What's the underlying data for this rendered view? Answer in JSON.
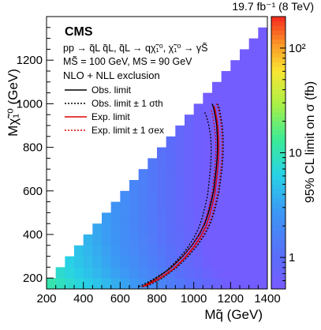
{
  "chart_data": {
    "type": "heatmap",
    "header": {
      "lumi_label": "19.7 fb⁻¹ (8 TeV)"
    },
    "experiment_label": "CMS",
    "process_label": "pp → q̃L q̃L, q̃L → qχ̃₁⁰, χ̃₁⁰ → γS̃",
    "mass_label": "MS̃ = 100 GeV, MS = 90 GeV",
    "xsec_label": "NLO + NLL exclusion",
    "xlabel": "Mq̃ (GeV)",
    "ylabel": "Mχ̃₁⁰ (GeV)",
    "zlabel": "95% CL limit on σ (fb)",
    "xlim": [
      200,
      1400
    ],
    "ylim": [
      150,
      1400
    ],
    "zlim": [
      0.5,
      200
    ],
    "zscale": "log",
    "x_ticks": [
      "200",
      "400",
      "600",
      "800",
      "1000",
      "1200",
      "1400"
    ],
    "y_ticks": [
      "200",
      "400",
      "600",
      "800",
      "1000",
      "1200"
    ],
    "z_ticks": [
      "1",
      "10",
      "10²"
    ],
    "x_tick_values": [
      200,
      400,
      600,
      800,
      1000,
      1200,
      1400
    ],
    "y_tick_values": [
      200,
      400,
      600,
      800,
      1000,
      1200
    ],
    "z_tick_values": [
      1,
      10,
      100
    ],
    "bin_size": 50,
    "legend": [
      {
        "label": "Obs. limit",
        "color": "#000000",
        "dash": "solid"
      },
      {
        "label": "Obs. limit ± 1 σth",
        "color": "#000000",
        "dash": "dotted"
      },
      {
        "label": "Exp. limit",
        "color": "#e00000",
        "dash": "solid"
      },
      {
        "label": "Exp. limit ± 1 σex",
        "color": "#e00000",
        "dash": "dotted"
      }
    ],
    "series": [
      {
        "name": "Obs. limit",
        "x": [
          1100,
          1108,
          1118,
          1125,
          1128,
          1129,
          1127,
          1122,
          1115,
          1108,
          1095,
          1080,
          1060,
          1030,
          990,
          940,
          880,
          800,
          720
        ],
        "y": [
          1000,
          980,
          940,
          900,
          850,
          800,
          750,
          700,
          650,
          600,
          550,
          500,
          450,
          400,
          350,
          300,
          250,
          200,
          160
        ]
      },
      {
        "name": "Obs. limit + 1 σth",
        "x": [
          1130,
          1138,
          1147,
          1155,
          1159,
          1160,
          1158,
          1153,
          1146,
          1138,
          1125,
          1110,
          1090,
          1060,
          1020,
          970,
          910,
          830,
          740
        ],
        "y": [
          1000,
          980,
          940,
          900,
          850,
          800,
          750,
          700,
          650,
          600,
          550,
          500,
          450,
          400,
          350,
          300,
          250,
          200,
          160
        ]
      },
      {
        "name": "Obs. limit − 1 σth",
        "x": [
          1060,
          1070,
          1082,
          1090,
          1094,
          1095,
          1093,
          1088,
          1082,
          1075,
          1062,
          1047,
          1027,
          998,
          958,
          908,
          848,
          770,
          700
        ],
        "y": [
          960,
          940,
          900,
          860,
          820,
          780,
          730,
          680,
          630,
          580,
          530,
          480,
          430,
          380,
          330,
          280,
          230,
          190,
          160
        ]
      },
      {
        "name": "Exp. limit",
        "x": [
          1110,
          1117,
          1126,
          1132,
          1135,
          1136,
          1134,
          1129,
          1122,
          1115,
          1102,
          1087,
          1067,
          1037,
          997,
          947,
          887,
          807,
          725
        ],
        "y": [
          990,
          970,
          930,
          890,
          840,
          790,
          740,
          690,
          640,
          590,
          540,
          490,
          440,
          390,
          340,
          290,
          240,
          195,
          160
        ]
      },
      {
        "name": "Exp. limit + 1 σex",
        "x": [
          1122,
          1132,
          1142,
          1149,
          1153,
          1154,
          1152,
          1147,
          1140,
          1132,
          1119,
          1104,
          1084,
          1054,
          1014,
          964,
          904,
          824,
          735
        ],
        "y": [
          1000,
          980,
          940,
          900,
          850,
          800,
          750,
          700,
          650,
          600,
          550,
          500,
          450,
          400,
          350,
          300,
          250,
          200,
          160
        ]
      },
      {
        "name": "Exp. limit − 1 σex",
        "x": [
          1095,
          1102,
          1110,
          1116,
          1119,
          1120,
          1118,
          1113,
          1106,
          1099,
          1086,
          1071,
          1051,
          1021,
          981,
          931,
          871,
          792,
          715
        ],
        "y": [
          970,
          950,
          910,
          870,
          830,
          790,
          740,
          690,
          640,
          590,
          540,
          490,
          440,
          390,
          340,
          290,
          240,
          195,
          160
        ]
      }
    ]
  }
}
